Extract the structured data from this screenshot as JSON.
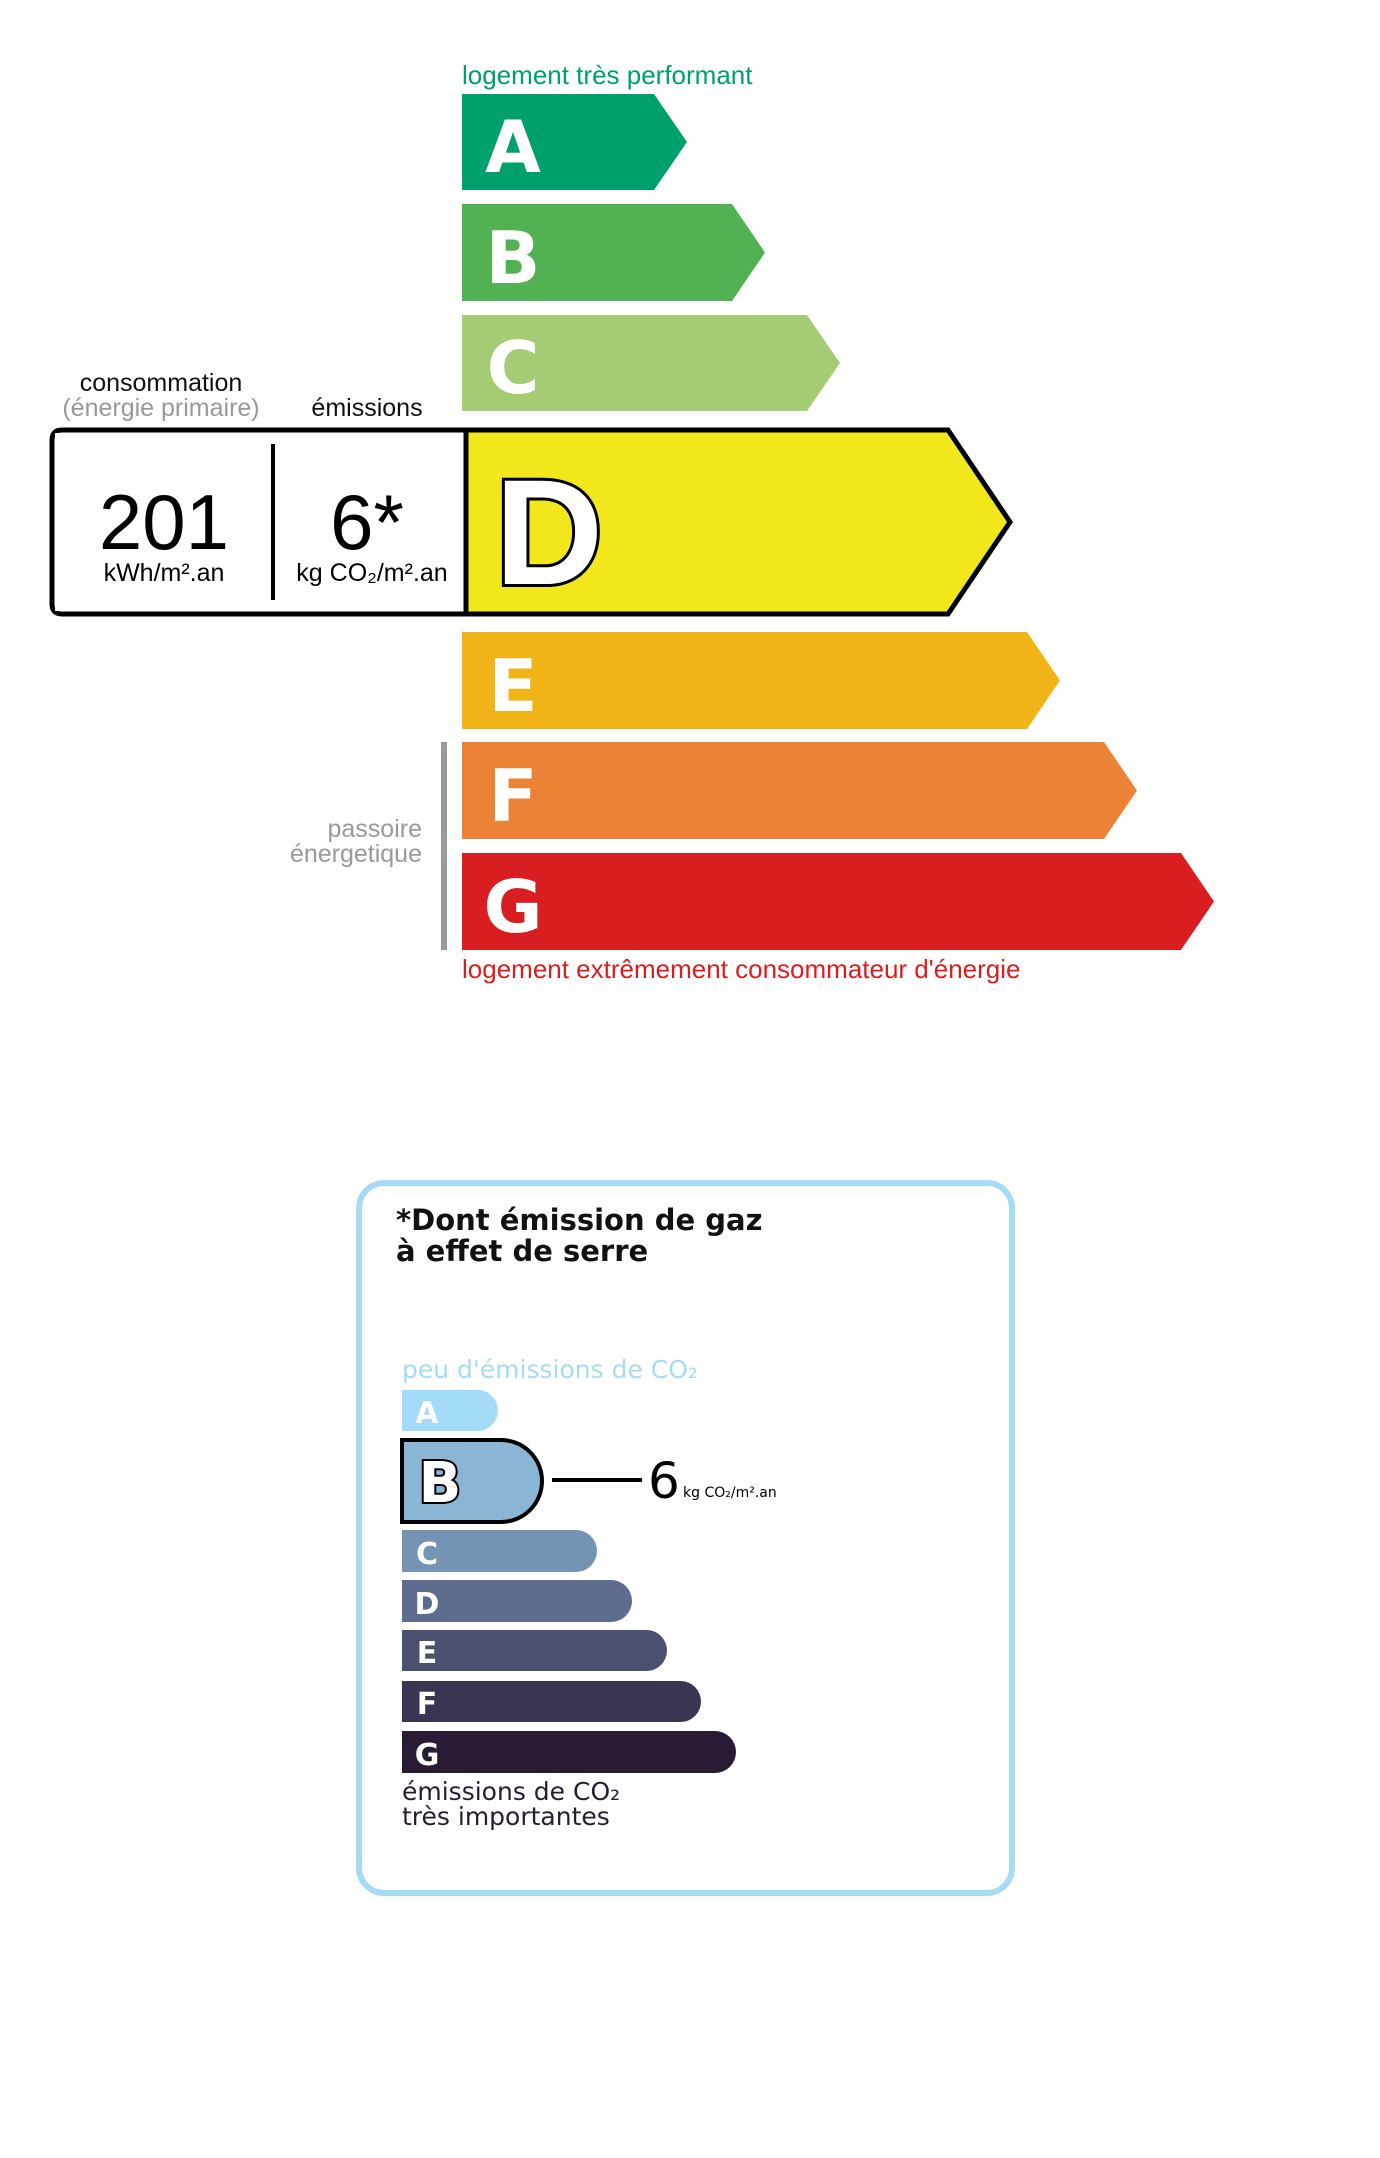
{
  "energy": {
    "top_label": "logement très performant",
    "bottom_label": "logement extrêmement consommateur d'énergie",
    "passoire_line1": "passoire",
    "passoire_line2": "énergetique",
    "consumption_label": "consommation",
    "consumption_sublabel": "(énergie primaire)",
    "emissions_label": "émissions",
    "consumption_value": "201",
    "consumption_unit": "kWh/m².an",
    "emissions_value": "6*",
    "emissions_unit": "kg CO₂/m².an",
    "current_class": "D",
    "classes": [
      {
        "letter": "A",
        "color": "#00a06d"
      },
      {
        "letter": "B",
        "color": "#52b153"
      },
      {
        "letter": "C",
        "color": "#a5cc74"
      },
      {
        "letter": "D",
        "color": "#f2e71a"
      },
      {
        "letter": "E",
        "color": "#f0b419"
      },
      {
        "letter": "F",
        "color": "#eb8235"
      },
      {
        "letter": "G",
        "color": "#d81e20"
      }
    ],
    "top_label_color": "#00a06d",
    "bottom_label_color": "#d81e20"
  },
  "ges": {
    "title_line1": "*Dont émission de gaz",
    "title_line2": "à effet de serre",
    "top_label": "peu d'émissions de CO₂",
    "bottom_label_line1": "émissions de CO₂",
    "bottom_label_line2": "très importantes",
    "current_class": "B",
    "value": "6",
    "unit": "kg CO₂/m².an",
    "border_color": "#a6dbf5",
    "classes": [
      {
        "letter": "A",
        "color": "#a4dbf8"
      },
      {
        "letter": "B",
        "color": "#8bb5d5"
      },
      {
        "letter": "C",
        "color": "#7593b4"
      },
      {
        "letter": "D",
        "color": "#5e6d8f"
      },
      {
        "letter": "E",
        "color": "#4c5070"
      },
      {
        "letter": "F",
        "color": "#383653"
      },
      {
        "letter": "G",
        "color": "#2a1b35"
      }
    ]
  }
}
